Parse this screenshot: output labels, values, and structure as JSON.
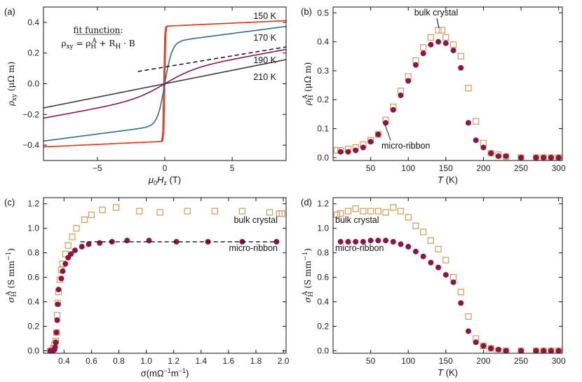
{
  "colors": {
    "wine": "#8c1446",
    "orange": "#d39a5a",
    "red": "#e03a22",
    "teal": "#2c6e8a",
    "magenta": "#8c1446",
    "gray": "#3a3a3a"
  },
  "chart_data": [
    {
      "panel": "(a)",
      "type": "line",
      "xlabel": "μ0Hz (T)",
      "ylabel": "ρxy (μΩ m)",
      "xlim": [
        -9,
        9
      ],
      "ylim": [
        -0.5,
        0.5
      ],
      "xticks": [
        -5,
        0,
        5
      ],
      "yticks": [
        -0.4,
        -0.2,
        0.0,
        0.2,
        0.4
      ],
      "fit_title": "fit function:",
      "fit_formula": "ρxy = ρH^A + RH · B",
      "series": [
        {
          "name": "150 K",
          "rho_A": 0.375,
          "slope": 0.004,
          "saturation": 0.06,
          "color": "red"
        },
        {
          "name": "170 K",
          "rho_A": 0.27,
          "slope": 0.0115,
          "saturation": 0.55,
          "color": "teal"
        },
        {
          "name": "190 K",
          "rho_A": 0.08,
          "slope": 0.016,
          "saturation": 2.3,
          "color": "magenta"
        },
        {
          "name": "210 K",
          "rho_A": 0.0,
          "slope": 0.0175,
          "saturation": 1.0,
          "color": "gray"
        }
      ],
      "dashed_fit": {
        "x": [
          -2,
          9
        ],
        "y": [
          0.08,
          0.24
        ]
      }
    },
    {
      "panel": "(b)",
      "type": "scatter",
      "xlabel": "T (K)",
      "ylabel": "ρH^A (μΩ m)",
      "xlim": [
        0,
        305
      ],
      "ylim": [
        -0.01,
        0.52
      ],
      "xticks": [
        50,
        100,
        150,
        200,
        250,
        300
      ],
      "yticks": [
        0.0,
        0.1,
        0.2,
        0.3,
        0.4,
        0.5
      ],
      "annotations": [
        "bulk crystal",
        "micro-ribbon"
      ],
      "series": [
        {
          "name": "bulk crystal",
          "marker": "open-square",
          "color": "orange",
          "x": [
            5,
            10,
            20,
            30,
            40,
            50,
            60,
            70,
            80,
            90,
            100,
            110,
            120,
            130,
            140,
            145,
            150,
            160,
            170,
            180,
            190,
            200,
            210,
            220,
            230,
            250,
            270,
            280,
            290,
            300
          ],
          "y": [
            0.025,
            0.025,
            0.03,
            0.035,
            0.045,
            0.06,
            0.08,
            0.13,
            0.175,
            0.23,
            0.28,
            0.335,
            0.38,
            0.415,
            0.44,
            0.44,
            0.415,
            0.39,
            0.35,
            0.24,
            0.125,
            0.05,
            0.015,
            0.01,
            0.003,
            0.0,
            0.0,
            0.0,
            0.0,
            0.0
          ]
        },
        {
          "name": "micro-ribbon",
          "marker": "filled-circle",
          "color": "wine",
          "x": [
            10,
            20,
            30,
            40,
            50,
            60,
            70,
            80,
            90,
            100,
            110,
            120,
            130,
            140,
            150,
            160,
            170,
            180,
            190,
            200,
            210,
            220,
            230,
            250,
            270,
            280,
            290,
            300
          ],
          "y": [
            0.02,
            0.02,
            0.025,
            0.035,
            0.055,
            0.08,
            0.12,
            0.165,
            0.215,
            0.265,
            0.32,
            0.36,
            0.39,
            0.4,
            0.395,
            0.37,
            0.31,
            0.12,
            0.06,
            0.035,
            0.015,
            0.005,
            0.005,
            0.0,
            0.0,
            0.0,
            0.0,
            0.0
          ]
        }
      ]
    },
    {
      "panel": "(c)",
      "type": "scatter",
      "xlabel": "σ(mΩ⁻¹m⁻¹)",
      "ylabel": "σH^A (S mm⁻¹)",
      "xlim": [
        0.25,
        2.02
      ],
      "ylim": [
        -0.02,
        1.25
      ],
      "xticks": [
        0.4,
        0.6,
        0.8,
        1.0,
        1.2,
        1.4,
        1.6,
        1.8,
        2.0
      ],
      "yticks": [
        0.0,
        0.2,
        0.4,
        0.6,
        0.8,
        1.0,
        1.2
      ],
      "annotations": [
        "bulk crystal",
        "micro-ribbon"
      ],
      "series": [
        {
          "name": "bulk crystal",
          "marker": "open-square",
          "color": "orange",
          "x": [
            0.3,
            0.31,
            0.32,
            0.33,
            0.34,
            0.345,
            0.35,
            0.355,
            0.36,
            0.37,
            0.38,
            0.39,
            0.41,
            0.43,
            0.46,
            0.49,
            0.55,
            0.6,
            0.68,
            0.78,
            0.95,
            1.1,
            1.3,
            1.5,
            1.7,
            1.9,
            1.97,
            1.99
          ],
          "y": [
            0.0,
            0.0,
            0.02,
            0.05,
            0.08,
            0.15,
            0.29,
            0.39,
            0.48,
            0.58,
            0.66,
            0.71,
            0.79,
            0.86,
            0.93,
            1.0,
            1.07,
            1.11,
            1.15,
            1.17,
            1.14,
            1.13,
            1.14,
            1.14,
            1.14,
            1.13,
            1.12,
            1.12
          ]
        },
        {
          "name": "micro-ribbon",
          "marker": "filled-circle",
          "color": "wine",
          "x": [
            0.3,
            0.31,
            0.32,
            0.33,
            0.335,
            0.34,
            0.345,
            0.35,
            0.355,
            0.36,
            0.38,
            0.39,
            0.41,
            0.43,
            0.45,
            0.48,
            0.53,
            0.58,
            0.66,
            0.75,
            0.86,
            1.02,
            1.22,
            1.45,
            1.7,
            1.95
          ],
          "y": [
            0.0,
            0.0,
            0.0,
            0.01,
            0.03,
            0.07,
            0.15,
            0.25,
            0.38,
            0.5,
            0.59,
            0.65,
            0.71,
            0.76,
            0.79,
            0.82,
            0.85,
            0.87,
            0.88,
            0.89,
            0.9,
            0.9,
            0.89,
            0.89,
            0.89,
            0.89
          ]
        }
      ],
      "dashed_fit": {
        "x": [
          0.52,
          1.96
        ],
        "y": [
          0.89,
          0.89
        ]
      }
    },
    {
      "panel": "(d)",
      "type": "scatter",
      "xlabel": "T (K)",
      "ylabel": "σH^A (S mm⁻¹)",
      "xlim": [
        0,
        305
      ],
      "ylim": [
        -0.02,
        1.25
      ],
      "xticks": [
        50,
        100,
        150,
        200,
        250,
        300
      ],
      "yticks": [
        0.0,
        0.2,
        0.4,
        0.6,
        0.8,
        1.0,
        1.2
      ],
      "annotations": [
        "bulk crystal",
        "micro-ribbon"
      ],
      "series": [
        {
          "name": "bulk crystal",
          "marker": "open-square",
          "color": "orange",
          "x": [
            5,
            10,
            20,
            30,
            40,
            50,
            60,
            70,
            80,
            90,
            100,
            110,
            120,
            130,
            140,
            150,
            160,
            170,
            180,
            190,
            200,
            210,
            220,
            230,
            250,
            270,
            280,
            290,
            300
          ],
          "y": [
            1.11,
            1.12,
            1.14,
            1.16,
            1.14,
            1.14,
            1.14,
            1.13,
            1.17,
            1.14,
            1.09,
            1.02,
            0.97,
            0.9,
            0.83,
            0.74,
            0.6,
            0.48,
            0.28,
            0.1,
            0.04,
            0.02,
            0.0,
            0.0,
            0.0,
            0.0,
            0.0,
            0.0,
            0.0
          ]
        },
        {
          "name": "micro-ribbon",
          "marker": "filled-circle",
          "color": "wine",
          "x": [
            10,
            20,
            30,
            40,
            50,
            60,
            70,
            80,
            90,
            100,
            110,
            120,
            130,
            140,
            150,
            160,
            170,
            180,
            190,
            200,
            210,
            220,
            230,
            250,
            270,
            280,
            290,
            300
          ],
          "y": [
            0.89,
            0.89,
            0.89,
            0.89,
            0.9,
            0.9,
            0.9,
            0.89,
            0.87,
            0.85,
            0.81,
            0.77,
            0.72,
            0.68,
            0.62,
            0.56,
            0.39,
            0.16,
            0.07,
            0.04,
            0.02,
            0.01,
            0.0,
            0.0,
            0.0,
            0.0,
            0.0,
            0.0
          ]
        }
      ]
    }
  ]
}
